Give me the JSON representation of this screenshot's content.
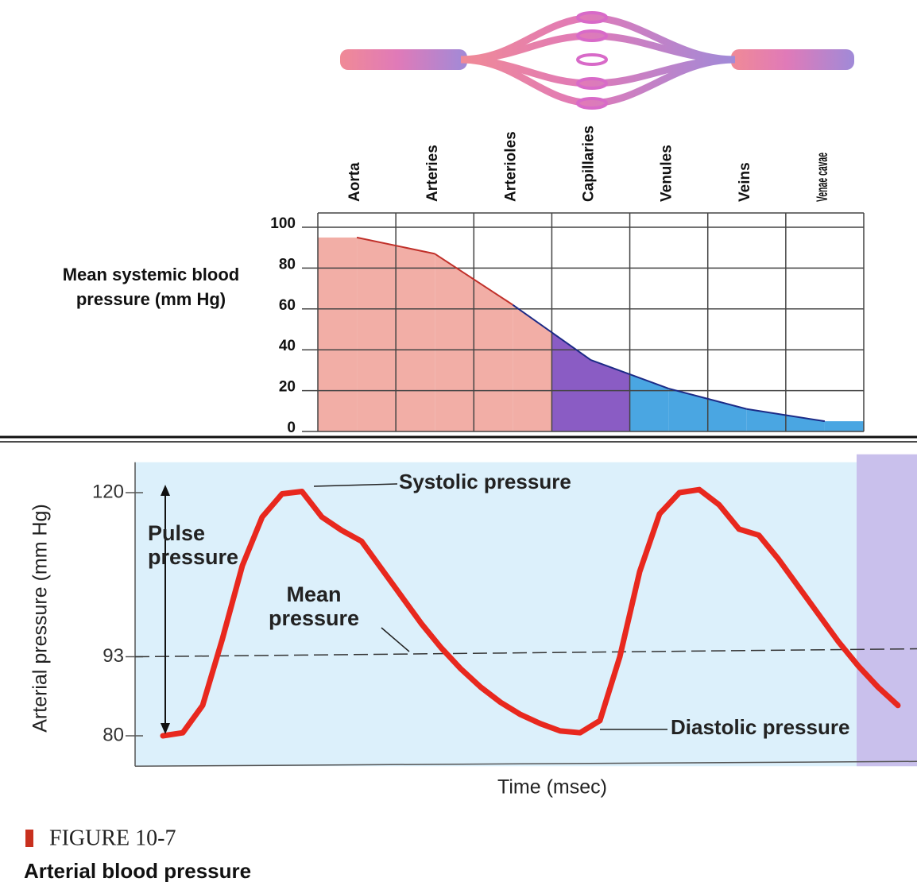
{
  "chart_data": [
    {
      "type": "area",
      "y_label": "Mean systemic blood pressure (mm Hg)",
      "categories": [
        "Aorta",
        "Arteries",
        "Arterioles",
        "Capillaries",
        "Venules",
        "Veins",
        "Venae cavae"
      ],
      "values": [
        95,
        87,
        62,
        35,
        21,
        11,
        5
      ],
      "colors": [
        "#f2aea6",
        "#f2aea6",
        "#f2aea6",
        "#8a5cc4",
        "#4aa6e2",
        "#4aa6e2",
        "#4aa6e2"
      ],
      "line_colors": [
        "#c0302a",
        "#c0302a",
        "#c0302a",
        "#1c2a86",
        "#1c2a86",
        "#1c2a86",
        "#1c2a86"
      ],
      "ylim": [
        0,
        100
      ],
      "yticks": [
        0,
        20,
        40,
        60,
        80,
        100
      ],
      "grid": true
    },
    {
      "type": "line",
      "y_label": "Arterial pressure (mm Hg)",
      "x_label": "Time (msec)",
      "categories": [
        null,
        null,
        null,
        null,
        null,
        null,
        null,
        null,
        null,
        null,
        null,
        null,
        null,
        null,
        null,
        null,
        null,
        null,
        null,
        null,
        null,
        null,
        null,
        null,
        null,
        null,
        null,
        null,
        null,
        null,
        null,
        null,
        null,
        null,
        null,
        null,
        null,
        null
      ],
      "values": [
        80,
        80.5,
        85,
        96,
        108,
        116,
        119.8,
        120.2,
        116,
        113.8,
        112,
        107.5,
        103,
        98.5,
        94.5,
        91,
        88,
        85.5,
        83.5,
        82,
        80.8,
        80.5,
        82.5,
        93,
        107,
        116.5,
        120,
        120.5,
        118,
        114,
        113,
        109,
        104.5,
        100,
        95.5,
        91.5,
        88,
        85
      ],
      "color": "#e8281e",
      "mean_line": 93,
      "annotations": [
        "Systolic pressure",
        "Pulse pressure",
        "Mean pressure",
        "Diastolic pressure"
      ],
      "ylim": [
        75,
        125
      ],
      "yticks": [
        80,
        93,
        120
      ]
    }
  ],
  "figure": {
    "label": "FIGURE 10-7",
    "caption": "Arterial blood pressure"
  }
}
